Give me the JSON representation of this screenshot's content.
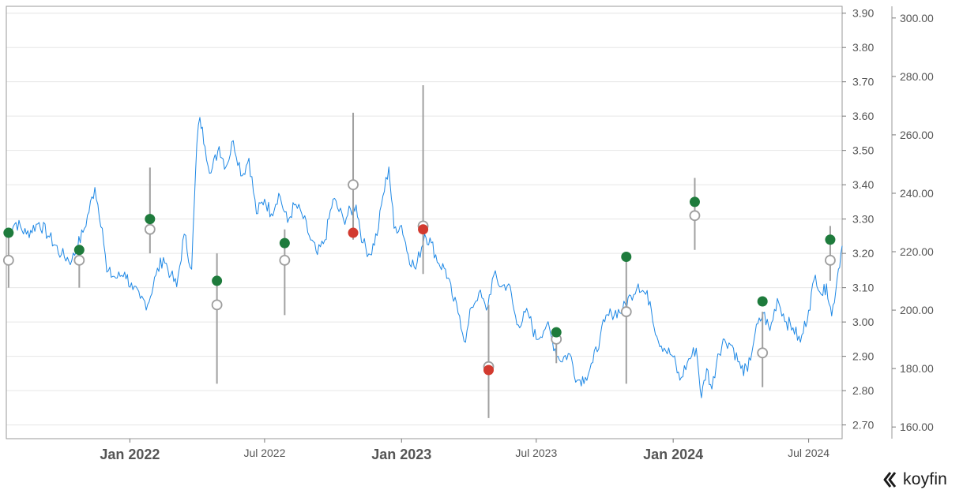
{
  "brand": {
    "name": "koyfin",
    "icon": "koyfin-logo-icon"
  },
  "colors": {
    "line": "#1e88e5",
    "beat": "#1e7b3c",
    "miss": "#d23a2f",
    "estimate_ring": "#9e9e9e",
    "grid": "#e6e6e6"
  },
  "chart_data": {
    "type": "line",
    "title": "",
    "xlabel": "",
    "ylabel": "",
    "x_ticks": [
      {
        "label": "Jan 2022",
        "date": "2022-01-01",
        "major": true
      },
      {
        "label": "Jul 2022",
        "date": "2022-07-01",
        "major": false
      },
      {
        "label": "Jan 2023",
        "date": "2023-01-01",
        "major": true
      },
      {
        "label": "Jul 2023",
        "date": "2023-07-01",
        "major": false
      },
      {
        "label": "Jan 2024",
        "date": "2024-01-01",
        "major": true
      },
      {
        "label": "Jul 2024",
        "date": "2024-07-01",
        "major": false
      }
    ],
    "x_range": [
      "2021-07-19",
      "2024-08-15"
    ],
    "eps_axis": {
      "range": [
        2.66,
        3.92
      ],
      "ticks": [
        "3.90",
        "3.80",
        "3.70",
        "3.60",
        "3.50",
        "3.40",
        "3.30",
        "3.20",
        "3.10",
        "3.00",
        "2.90",
        "2.80",
        "2.70"
      ]
    },
    "price_axis": {
      "range": [
        156,
        304
      ],
      "ticks": [
        "300.00",
        "280.00",
        "260.00",
        "240.00",
        "220.00",
        "200.00",
        "180.00",
        "160.00"
      ]
    },
    "grid": true,
    "price_series": {
      "name": "",
      "points": [
        [
          "2021-07-19",
          226
        ],
        [
          "2021-08-01",
          230
        ],
        [
          "2021-08-15",
          226
        ],
        [
          "2021-09-01",
          230
        ],
        [
          "2021-09-15",
          225
        ],
        [
          "2021-10-01",
          219
        ],
        [
          "2021-10-15",
          217
        ],
        [
          "2021-11-01",
          228
        ],
        [
          "2021-11-15",
          242
        ],
        [
          "2021-11-25",
          228
        ],
        [
          "2021-12-01",
          213
        ],
        [
          "2021-12-15",
          211
        ],
        [
          "2021-12-25",
          213
        ],
        [
          "2022-01-05",
          207
        ],
        [
          "2022-01-15",
          204
        ],
        [
          "2022-01-25",
          202
        ],
        [
          "2022-02-05",
          212
        ],
        [
          "2022-02-15",
          218
        ],
        [
          "2022-02-25",
          212
        ],
        [
          "2022-03-05",
          208
        ],
        [
          "2022-03-15",
          226
        ],
        [
          "2022-03-25",
          214
        ],
        [
          "2022-04-01",
          257
        ],
        [
          "2022-04-05",
          266
        ],
        [
          "2022-04-12",
          256
        ],
        [
          "2022-04-20",
          247
        ],
        [
          "2022-05-01",
          256
        ],
        [
          "2022-05-10",
          249
        ],
        [
          "2022-05-20",
          258
        ],
        [
          "2022-06-01",
          246
        ],
        [
          "2022-06-10",
          252
        ],
        [
          "2022-06-20",
          233
        ],
        [
          "2022-07-01",
          238
        ],
        [
          "2022-07-10",
          233
        ],
        [
          "2022-07-20",
          240
        ],
        [
          "2022-08-01",
          230
        ],
        [
          "2022-08-10",
          236
        ],
        [
          "2022-08-20",
          233
        ],
        [
          "2022-09-01",
          224
        ],
        [
          "2022-09-10",
          219
        ],
        [
          "2022-09-20",
          224
        ],
        [
          "2022-10-01",
          238
        ],
        [
          "2022-10-15",
          231
        ],
        [
          "2022-11-01",
          236
        ],
        [
          "2022-11-10",
          223
        ],
        [
          "2022-11-20",
          219
        ],
        [
          "2022-12-01",
          228
        ],
        [
          "2022-12-05",
          236
        ],
        [
          "2022-12-15",
          249
        ],
        [
          "2022-12-22",
          228
        ],
        [
          "2023-01-01",
          229
        ],
        [
          "2023-01-10",
          219
        ],
        [
          "2023-01-20",
          214
        ],
        [
          "2023-02-01",
          226
        ],
        [
          "2023-02-10",
          223
        ],
        [
          "2023-02-20",
          216
        ],
        [
          "2023-03-01",
          214
        ],
        [
          "2023-03-10",
          205
        ],
        [
          "2023-03-20",
          198
        ],
        [
          "2023-03-28",
          189
        ],
        [
          "2023-04-05",
          201
        ],
        [
          "2023-04-15",
          206
        ],
        [
          "2023-04-25",
          200
        ],
        [
          "2023-05-05",
          212
        ],
        [
          "2023-05-15",
          208
        ],
        [
          "2023-05-25",
          209
        ],
        [
          "2023-06-05",
          195
        ],
        [
          "2023-06-20",
          199
        ],
        [
          "2023-07-01",
          190
        ],
        [
          "2023-07-15",
          195
        ],
        [
          "2023-08-01",
          183
        ],
        [
          "2023-08-15",
          185
        ],
        [
          "2023-08-25",
          176
        ],
        [
          "2023-09-05",
          177
        ],
        [
          "2023-09-15",
          182
        ],
        [
          "2023-09-25",
          191
        ],
        [
          "2023-10-01",
          196
        ],
        [
          "2023-10-10",
          199
        ],
        [
          "2023-10-25",
          200
        ],
        [
          "2023-11-05",
          205
        ],
        [
          "2023-11-15",
          209
        ],
        [
          "2023-12-01",
          203
        ],
        [
          "2023-12-10",
          191
        ],
        [
          "2023-12-20",
          187
        ],
        [
          "2024-01-01",
          184
        ],
        [
          "2024-01-10",
          176
        ],
        [
          "2024-01-20",
          182
        ],
        [
          "2024-02-01",
          187
        ],
        [
          "2024-02-08",
          170
        ],
        [
          "2024-02-15",
          180
        ],
        [
          "2024-02-22",
          173
        ],
        [
          "2024-03-01",
          185
        ],
        [
          "2024-03-10",
          190
        ],
        [
          "2024-03-20",
          188
        ],
        [
          "2024-04-01",
          180
        ],
        [
          "2024-04-10",
          179
        ],
        [
          "2024-04-20",
          192
        ],
        [
          "2024-05-01",
          199
        ],
        [
          "2024-05-10",
          193
        ],
        [
          "2024-05-20",
          204
        ],
        [
          "2024-06-01",
          196
        ],
        [
          "2024-06-10",
          194
        ],
        [
          "2024-06-20",
          189
        ],
        [
          "2024-07-01",
          200
        ],
        [
          "2024-07-10",
          212
        ],
        [
          "2024-07-20",
          205
        ],
        [
          "2024-07-25",
          209
        ],
        [
          "2024-08-01",
          198
        ],
        [
          "2024-08-10",
          214
        ],
        [
          "2024-08-15",
          222
        ]
      ]
    },
    "eps_events": [
      {
        "date": "2021-07-22",
        "estimate": 3.18,
        "low": 3.1,
        "high": 3.27,
        "actual": 3.26,
        "result": "beat"
      },
      {
        "date": "2021-10-25",
        "estimate": 3.18,
        "low": 3.1,
        "high": 3.22,
        "actual": 3.21,
        "result": "beat"
      },
      {
        "date": "2022-01-28",
        "estimate": 3.27,
        "low": 3.2,
        "high": 3.45,
        "actual": 3.3,
        "result": "beat"
      },
      {
        "date": "2022-04-28",
        "estimate": 3.05,
        "low": 2.82,
        "high": 3.2,
        "actual": 3.12,
        "result": "beat"
      },
      {
        "date": "2022-07-28",
        "estimate": 3.18,
        "low": 3.02,
        "high": 3.27,
        "actual": 3.23,
        "result": "beat"
      },
      {
        "date": "2022-10-28",
        "estimate": 3.4,
        "low": 3.24,
        "high": 3.61,
        "actual": 3.26,
        "result": "miss"
      },
      {
        "date": "2023-01-30",
        "estimate": 3.28,
        "low": 3.14,
        "high": 3.69,
        "actual": 3.27,
        "result": "miss"
      },
      {
        "date": "2023-04-28",
        "estimate": 2.87,
        "low": 2.72,
        "high": 3.05,
        "actual": 2.86,
        "result": "miss"
      },
      {
        "date": "2023-07-28",
        "estimate": 2.95,
        "low": 2.88,
        "high": 2.97,
        "actual": 2.97,
        "result": "beat"
      },
      {
        "date": "2023-10-30",
        "estimate": 3.03,
        "low": 2.82,
        "high": 3.18,
        "actual": 3.19,
        "result": "beat"
      },
      {
        "date": "2024-01-30",
        "estimate": 3.31,
        "low": 3.21,
        "high": 3.42,
        "actual": 3.35,
        "result": "beat"
      },
      {
        "date": "2024-04-30",
        "estimate": 2.91,
        "low": 2.81,
        "high": 3.03,
        "actual": 3.06,
        "result": "beat"
      },
      {
        "date": "2024-07-30",
        "estimate": 3.18,
        "low": 3.12,
        "high": 3.28,
        "actual": 3.24,
        "result": "beat"
      }
    ]
  }
}
